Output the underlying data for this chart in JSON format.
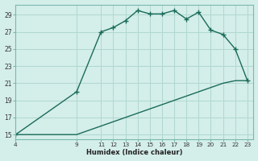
{
  "title": "",
  "xlabel": "Humidex (Indice chaleur)",
  "ylabel": "",
  "bg_color": "#d4eeea",
  "line_color": "#1a6b5a",
  "grid_color": "#b0d8d0",
  "x_upper": [
    4,
    9,
    11,
    12,
    13,
    14,
    15,
    16,
    17,
    18,
    19,
    20,
    21,
    22,
    23
  ],
  "y_upper": [
    15,
    20,
    27,
    27.5,
    28.3,
    29.5,
    29.1,
    29.1,
    29.5,
    28.5,
    29.3,
    27.2,
    26.7,
    25.0,
    21.3
  ],
  "x_lower": [
    4,
    9,
    11,
    12,
    13,
    14,
    15,
    16,
    17,
    18,
    19,
    20,
    21,
    22,
    23
  ],
  "y_lower": [
    15,
    15,
    16,
    16.5,
    17,
    17.5,
    18,
    18.5,
    19,
    19.5,
    20,
    20.5,
    21,
    21.3,
    21.3
  ],
  "xlim": [
    4,
    23.5
  ],
  "ylim": [
    14.5,
    30.2
  ],
  "yticks": [
    15,
    17,
    19,
    21,
    23,
    25,
    27,
    29
  ],
  "xticks": [
    4,
    9,
    11,
    12,
    13,
    14,
    15,
    16,
    17,
    18,
    19,
    20,
    21,
    22,
    23
  ],
  "marker": "+",
  "marker_size": 5,
  "line_width": 1.0
}
